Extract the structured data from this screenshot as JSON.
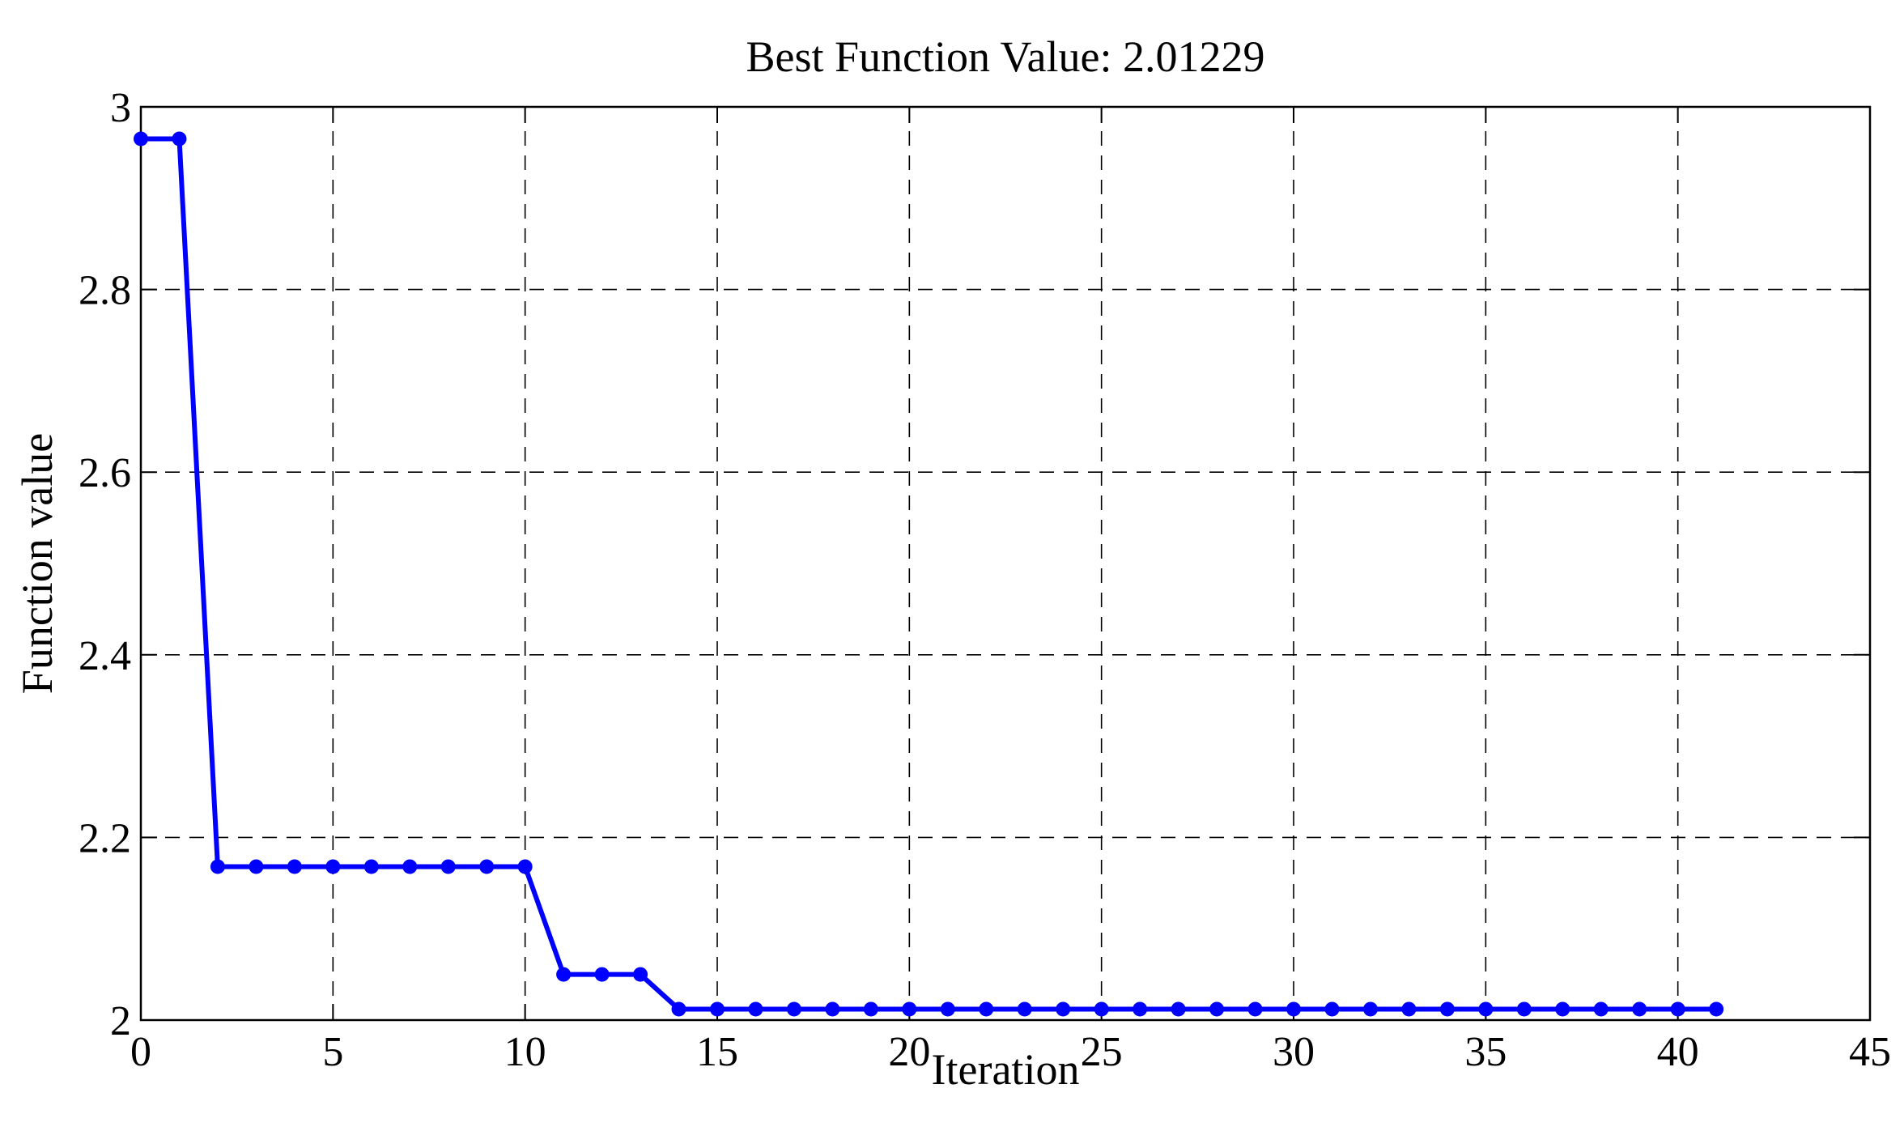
{
  "chart_data": {
    "type": "line",
    "title": "Best Function Value: 2.01229",
    "xlabel": "Iteration",
    "ylabel": "Function value",
    "xlim": [
      0,
      45
    ],
    "ylim": [
      2,
      3
    ],
    "xticks": [
      0,
      5,
      10,
      15,
      20,
      25,
      30,
      35,
      40,
      45
    ],
    "yticks": [
      2,
      2.2,
      2.4,
      2.6,
      2.8,
      3
    ],
    "xtick_labels": [
      "0",
      "5",
      "10",
      "15",
      "20",
      "25",
      "30",
      "35",
      "40",
      "45"
    ],
    "ytick_labels": [
      "2",
      "2.2",
      "2.4",
      "2.6",
      "2.8",
      "3"
    ],
    "grid": true,
    "grid_style": "dashed",
    "line_color": "#0000ff",
    "markers": true,
    "series": [
      {
        "x": [
          0,
          1,
          2,
          3,
          4,
          5,
          6,
          7,
          8,
          9,
          10,
          11,
          12,
          13,
          14,
          15,
          16,
          17,
          18,
          19,
          20,
          21,
          22,
          23,
          24,
          25,
          26,
          27,
          28,
          29,
          30,
          31,
          32,
          33,
          34,
          35,
          36,
          37,
          38,
          39,
          40,
          41
        ],
        "y": [
          2.965,
          2.965,
          2.168,
          2.168,
          2.168,
          2.168,
          2.168,
          2.168,
          2.168,
          2.168,
          2.168,
          2.05,
          2.05,
          2.05,
          2.012,
          2.012,
          2.012,
          2.012,
          2.012,
          2.012,
          2.012,
          2.012,
          2.012,
          2.012,
          2.012,
          2.012,
          2.012,
          2.012,
          2.012,
          2.012,
          2.012,
          2.012,
          2.012,
          2.012,
          2.012,
          2.012,
          2.012,
          2.012,
          2.012,
          2.012,
          2.012,
          2.012
        ]
      }
    ]
  }
}
